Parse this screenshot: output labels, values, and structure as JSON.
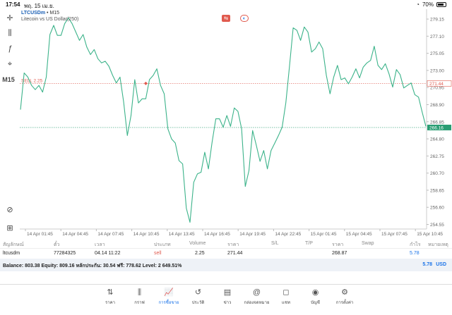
{
  "status_bar": {
    "time": "17:54",
    "date": "พฤ. 15 เม.ย.",
    "battery": "70%"
  },
  "left_tools": {
    "timeframe": "M15"
  },
  "chart": {
    "symbol": "LTCUSDm",
    "separator": "•",
    "timeframe": "M15",
    "description": "Litecoin vs US Dollar(250)",
    "sell_label": "SELL 2.25"
  },
  "chart_data": {
    "type": "line",
    "y_ticks": [
      "279.15",
      "277.10",
      "275.05",
      "273.00",
      "270.95",
      "268.90",
      "266.85",
      "264.80",
      "262.75",
      "260.70",
      "258.65",
      "256.60",
      "254.55"
    ],
    "x_ticks": [
      "14 Apr 01:45",
      "14 Apr 04:45",
      "14 Apr 07:45",
      "14 Apr 10:45",
      "14 Apr 13:45",
      "14 Apr 16:45",
      "14 Apr 19:45",
      "14 Apr 22:45",
      "15 Apr 01:45",
      "15 Apr 04:45",
      "15 Apr 07:45",
      "15 Apr 10:45"
    ],
    "ylim": [
      254.0,
      280.0
    ],
    "series": [
      {
        "values": [
          268.3,
          272.7,
          272.2,
          271.2,
          270.7,
          271.2,
          270.4,
          272.2,
          277.3,
          278.4,
          277.2,
          277.2,
          278.6,
          279.3,
          278.6,
          277.6,
          276.6,
          277.3,
          275.8,
          274.9,
          275.5,
          274.4,
          273.9,
          274.1,
          273.5,
          272.4,
          271.5,
          272.2,
          269.2,
          265.2,
          267.6,
          271.9,
          269.1,
          269.6,
          269.6,
          271.9,
          272.4,
          273.2,
          271.2,
          270.2,
          266.0,
          264.8,
          264.3,
          262.2,
          261.8,
          256.5,
          254.8,
          259.6,
          260.6,
          260.8,
          263.2,
          261.2,
          264.4,
          267.2,
          267.2,
          266.2,
          267.6,
          266.3,
          268.5,
          268.1,
          266.0,
          259.1,
          261.0,
          265.8,
          264.0,
          262.1,
          263.4,
          261.2,
          263.4,
          264.3,
          265.2,
          266.2,
          269.1,
          273.5,
          278.1,
          277.8,
          276.6,
          278.2,
          277.6,
          275.2,
          275.6,
          276.4,
          275.6,
          272.4,
          270.2,
          272.2,
          273.6,
          271.9,
          272.1,
          271.4,
          272.2,
          273.2,
          272.1,
          273.4,
          273.9,
          274.2,
          275.9,
          273.6,
          273.1,
          273.8,
          272.6,
          271.0,
          273.1,
          272.5,
          270.9,
          271.2,
          271.5,
          270.1,
          269.8,
          268.0,
          266.3
        ]
      }
    ],
    "sell_price": 271.44,
    "sell_price_label": "271.44",
    "bid_price": 266.16,
    "bid_price_label": "266.16",
    "sell_marker_index": 34
  },
  "table": {
    "headers": [
      "สัญลักษณ์",
      "ตั๋ว",
      "เวลา",
      "ประเภท",
      "Volume",
      "ราคา",
      "S/L",
      "T/P",
      "ราคา",
      "Swap",
      "กำไร",
      "หมายเหตุ"
    ],
    "row": {
      "symbol": "ltcusdm",
      "ticket": "77284325",
      "time": "04.14 11:22",
      "type": "sell",
      "volume": "2.25",
      "price": "271.44",
      "sl": "",
      "tp": "",
      "current_price": "268.87",
      "swap": "",
      "profit": "5.78",
      "comment": ""
    }
  },
  "balance": {
    "text": "Balance: 803.38 Equity: 809.16 หลักประกัน: 30.54 ฟรี: 778.62 Level: 2 649.51%",
    "profit": "5.78",
    "currency": "USD"
  },
  "nav": [
    {
      "label": "ราคา",
      "icon": "⇅"
    },
    {
      "label": "กราฟ",
      "icon": "⫼"
    },
    {
      "label": "การซื้อขาย",
      "icon": "📈"
    },
    {
      "label": "ประวัติ",
      "icon": "↺"
    },
    {
      "label": "ข่าว",
      "icon": "▤"
    },
    {
      "label": "กล่องจดหมาย",
      "icon": "@"
    },
    {
      "label": "แชท",
      "icon": "◻"
    },
    {
      "label": "บัญชี",
      "icon": "◉"
    },
    {
      "label": "การตั้งค่า",
      "icon": "⚙"
    }
  ],
  "colors": {
    "line": "#3cb38a",
    "sell_line": "#e05a4e",
    "bid_line": "#2a9d73",
    "accent": "#1a73e8"
  }
}
